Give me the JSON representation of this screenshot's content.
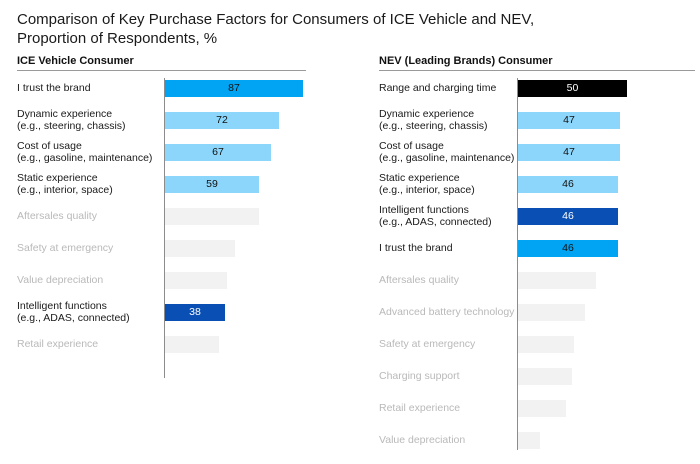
{
  "chart_data": {
    "type": "bar",
    "orientation": "horizontal",
    "title": "Comparison of Key Purchase Factors for Consumers of ICE Vehicle and NEV, Proportion of Respondents, %",
    "title_lines": [
      "Comparison of Key Purchase Factors for Consumers of ICE Vehicle and NEV,",
      "Proportion of Respondents, %"
    ],
    "panels": [
      {
        "name": "ICE Vehicle Consumer",
        "xlim": [
          0,
          100
        ],
        "categories": [
          {
            "label": [
              "I trust the brand"
            ],
            "value": 87,
            "labeled": true,
            "color": "#00a4f2",
            "highlight": true
          },
          {
            "label": [
              "Dynamic experience",
              "(e.g., steering, chassis)"
            ],
            "value": 72,
            "labeled": true,
            "color": "#8dd6fb",
            "highlight": true
          },
          {
            "label": [
              "Cost of usage",
              "(e.g., gasoline, maintenance)"
            ],
            "value": 67,
            "labeled": true,
            "color": "#8dd6fb",
            "highlight": true
          },
          {
            "label": [
              "Static experience",
              "(e.g., interior, space)"
            ],
            "value": 59,
            "labeled": true,
            "color": "#8dd6fb",
            "highlight": true
          },
          {
            "label": [
              "Aftersales quality"
            ],
            "value": 59,
            "labeled": false,
            "color": "#f2f2f2",
            "highlight": false
          },
          {
            "label": [
              "Safety at emergency"
            ],
            "value": 44,
            "labeled": false,
            "color": "#f2f2f2",
            "highlight": false
          },
          {
            "label": [
              "Value depreciation"
            ],
            "value": 39,
            "labeled": false,
            "color": "#f2f2f2",
            "highlight": false
          },
          {
            "label": [
              "Intelligent functions",
              "(e.g., ADAS, connected)"
            ],
            "value": 38,
            "labeled": true,
            "color": "#0a4fb4",
            "highlight": true
          },
          {
            "label": [
              "Retail experience"
            ],
            "value": 34,
            "labeled": false,
            "color": "#f2f2f2",
            "highlight": false
          }
        ]
      },
      {
        "name": "NEV (Leading Brands) Consumer",
        "xlim": [
          0,
          64
        ],
        "categories": [
          {
            "label": [
              "Range and charging time"
            ],
            "value": 50,
            "labeled": true,
            "color": "#000000",
            "highlight": true
          },
          {
            "label": [
              "Dynamic experience",
              "(e.g., steering, chassis)"
            ],
            "value": 47,
            "labeled": true,
            "color": "#8dd6fb",
            "highlight": true
          },
          {
            "label": [
              "Cost of usage",
              "(e.g., gasoline, maintenance)"
            ],
            "value": 47,
            "labeled": true,
            "color": "#8dd6fb",
            "highlight": true
          },
          {
            "label": [
              "Static experience",
              "(e.g., interior, space)"
            ],
            "value": 46,
            "labeled": true,
            "color": "#8dd6fb",
            "highlight": true
          },
          {
            "label": [
              "Intelligent functions",
              "(e.g., ADAS, connected)"
            ],
            "value": 46,
            "labeled": true,
            "color": "#0a4fb4",
            "highlight": true
          },
          {
            "label": [
              "I trust the brand"
            ],
            "value": 46,
            "labeled": true,
            "color": "#00a4f2",
            "highlight": true
          },
          {
            "label": [
              "Aftersales quality"
            ],
            "value": 36,
            "labeled": false,
            "color": "#f2f2f2",
            "highlight": false
          },
          {
            "label": [
              "Advanced battery technology"
            ],
            "value": 31,
            "labeled": false,
            "color": "#f2f2f2",
            "highlight": false
          },
          {
            "label": [
              "Safety at emergency"
            ],
            "value": 26,
            "labeled": false,
            "color": "#f2f2f2",
            "highlight": false
          },
          {
            "label": [
              "Charging support"
            ],
            "value": 25,
            "labeled": false,
            "color": "#f2f2f2",
            "highlight": false
          },
          {
            "label": [
              "Retail experience"
            ],
            "value": 22,
            "labeled": false,
            "color": "#f2f2f2",
            "highlight": false
          },
          {
            "label": [
              "Value depreciation"
            ],
            "value": 10,
            "labeled": false,
            "color": "#f2f2f2",
            "highlight": false
          }
        ]
      }
    ],
    "xlabel": "",
    "ylabel": "",
    "grid": false,
    "legend": "none"
  }
}
